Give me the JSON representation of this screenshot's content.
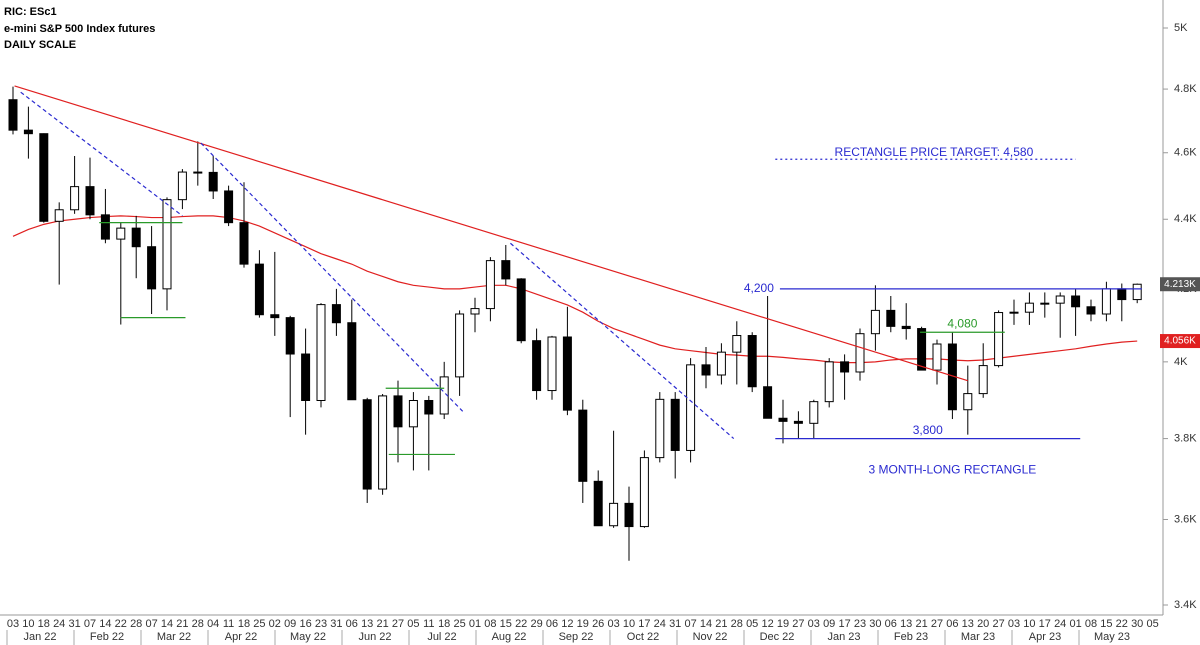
{
  "header": {
    "lines": [
      "RIC: ESc1",
      "e-mini S&P 500 Index futures",
      "DAILY SCALE"
    ]
  },
  "chart_data": {
    "type": "candlestick",
    "log_scale": true,
    "up_color": "#ffffff",
    "down_color": "#000000",
    "categories": [
      "03",
      "10",
      "18",
      "24",
      "31",
      "07",
      "14",
      "22",
      "28",
      "07",
      "14",
      "21",
      "28",
      "04",
      "11",
      "18",
      "25",
      "02",
      "09",
      "16",
      "23",
      "31",
      "06",
      "13",
      "21",
      "27",
      "05",
      "11",
      "18",
      "25",
      "01",
      "08",
      "15",
      "22",
      "29",
      "06",
      "12",
      "19",
      "26",
      "03",
      "10",
      "17",
      "24",
      "31",
      "07",
      "14",
      "21",
      "28",
      "05",
      "12",
      "19",
      "27",
      "03",
      "09",
      "17",
      "23",
      "30",
      "06",
      "13",
      "21",
      "27",
      "06",
      "13",
      "20",
      "27",
      "03",
      "10",
      "17",
      "24",
      "01",
      "08",
      "15",
      "22",
      "30",
      "05"
    ],
    "months": [
      "Jan 22",
      "Feb 22",
      "Mar 22",
      "Apr 22",
      "May 22",
      "Jun 22",
      "Jul 22",
      "Aug 22",
      "Sep 22",
      "Oct 22",
      "Nov 22",
      "Dec 22",
      "Jan 23",
      "Feb 23",
      "Mar 23",
      "Apr 23",
      "May 23"
    ],
    "open": [
      4766,
      4670,
      4659,
      4394,
      4428,
      4497,
      4413,
      4342,
      4374,
      4320,
      4200,
      4458,
      4541,
      4540,
      4484,
      4390,
      4270,
      4128,
      4120,
      4021,
      3898,
      4156,
      4106,
      3900,
      3674,
      3910,
      3830,
      3898,
      3863,
      3960,
      4130,
      4145,
      4280,
      4228,
      4057,
      3924,
      4067,
      3873,
      3693,
      3585,
      3639,
      3583,
      3752,
      3901,
      3770,
      3992,
      3965,
      4026,
      4071,
      3934,
      3852,
      3844,
      3839,
      3895,
      4000,
      3973,
      4076,
      4140,
      4096,
      4090,
      3978,
      4048,
      3874,
      3916,
      3990,
      4134,
      4135,
      4160,
      4160,
      4180,
      4150,
      4130,
      4200,
      4170,
      null
    ],
    "high": [
      4808,
      4744,
      4660,
      4450,
      4590,
      4585,
      4490,
      4390,
      4410,
      4380,
      4465,
      4550,
      4635,
      4590,
      4500,
      4510,
      4310,
      4305,
      4125,
      4090,
      4160,
      4200,
      4170,
      3905,
      3915,
      3950,
      3920,
      3910,
      4000,
      4140,
      4175,
      4290,
      4325,
      4230,
      4090,
      4070,
      4150,
      3900,
      3720,
      3820,
      3680,
      3770,
      3920,
      3920,
      4010,
      4040,
      4050,
      4110,
      4080,
      4180,
      3900,
      3870,
      3900,
      4010,
      4020,
      4090,
      4210,
      4180,
      4160,
      4095,
      4060,
      4080,
      3990,
      4050,
      4140,
      4170,
      4190,
      4190,
      4190,
      4200,
      4170,
      4220,
      4215,
      4215,
      null
    ],
    "low": [
      4657,
      4582,
      4390,
      4212,
      4416,
      4400,
      4330,
      4101,
      4230,
      4130,
      4140,
      4430,
      4500,
      4460,
      4380,
      4260,
      4120,
      4070,
      3855,
      3810,
      3880,
      4070,
      3900,
      3640,
      3660,
      3740,
      3720,
      3720,
      3850,
      3910,
      4080,
      4110,
      4210,
      4050,
      3900,
      3900,
      3860,
      3640,
      3590,
      3580,
      3502,
      3580,
      3740,
      3700,
      3740,
      3930,
      3940,
      3940,
      3920,
      3860,
      3788,
      3800,
      3800,
      3880,
      3900,
      3950,
      4030,
      4080,
      4060,
      3980,
      3940,
      3850,
      3810,
      3905,
      3985,
      4100,
      4100,
      4120,
      4065,
      4070,
      4110,
      4110,
      4110,
      4160,
      null
    ],
    "close": [
      4670,
      4659,
      4394,
      4428,
      4497,
      4413,
      4342,
      4374,
      4320,
      4200,
      4458,
      4541,
      4540,
      4484,
      4390,
      4270,
      4128,
      4120,
      4021,
      3898,
      4156,
      4106,
      3900,
      3674,
      3910,
      3830,
      3898,
      3863,
      3960,
      4130,
      4145,
      4280,
      4228,
      4057,
      3924,
      4067,
      3873,
      3693,
      3585,
      3639,
      3583,
      3752,
      3901,
      3770,
      3992,
      3965,
      4026,
      4071,
      3934,
      3852,
      3844,
      3839,
      3895,
      4000,
      3973,
      4076,
      4140,
      4096,
      4090,
      3978,
      4048,
      3874,
      3916,
      3990,
      4134,
      4135,
      4160,
      4160,
      4180,
      4150,
      4130,
      4200,
      4170,
      4213,
      null
    ],
    "moving_average": {
      "color": "#e02020",
      "values": [
        4350,
        4370,
        4385,
        4395,
        4400,
        4405,
        4408,
        4410,
        4408,
        4405,
        4405,
        4408,
        4410,
        4410,
        4405,
        4395,
        4380,
        4360,
        4340,
        4320,
        4300,
        4285,
        4270,
        4250,
        4235,
        4220,
        4210,
        4205,
        4200,
        4200,
        4205,
        4210,
        4210,
        4200,
        4185,
        4170,
        4155,
        4135,
        4110,
        4090,
        4075,
        4060,
        4045,
        4035,
        4030,
        4025,
        4020,
        4018,
        4015,
        4015,
        4012,
        4008,
        4005,
        4000,
        3998,
        3998,
        4000,
        4005,
        4008,
        4008,
        4008,
        4005,
        4003,
        4005,
        4010,
        4015,
        4020,
        4025,
        4030,
        4035,
        4042,
        4048,
        4053,
        4056,
        null
      ]
    },
    "ylim": [
      3400,
      5000
    ],
    "yticks": [
      {
        "value": 3400,
        "label": "3.4K"
      },
      {
        "value": 3600,
        "label": "3.6K"
      },
      {
        "value": 3800,
        "label": "3.8K"
      },
      {
        "value": 4000,
        "label": "4K"
      },
      {
        "value": 4200,
        "label": "4.2K"
      },
      {
        "value": 4400,
        "label": "4.4K"
      },
      {
        "value": 4600,
        "label": "4.6K"
      },
      {
        "value": 4800,
        "label": "4.8K"
      },
      {
        "value": 5000,
        "label": "5K"
      }
    ],
    "price_tags": [
      {
        "value": 4213,
        "label": "4.213K",
        "color": "#555555"
      },
      {
        "value": 4056,
        "label": "4.056K",
        "color": "#e02020"
      }
    ],
    "trendlines": [
      {
        "color": "#e02020",
        "style": "solid",
        "from": {
          "x": 0.1,
          "y": 4810
        },
        "to": {
          "x": 62,
          "y": 3950
        }
      },
      {
        "color": "#2a2ad0",
        "style": "dashed",
        "from": {
          "x": 0.5,
          "y": 4790
        },
        "to": {
          "x": 11,
          "y": 4410
        }
      },
      {
        "color": "#2a2ad0",
        "style": "dashed",
        "from": {
          "x": 12.2,
          "y": 4630
        },
        "to": {
          "x": 29.2,
          "y": 3870
        }
      },
      {
        "color": "#2a2ad0",
        "style": "dashed",
        "from": {
          "x": 32.3,
          "y": 4330
        },
        "to": {
          "x": 46.8,
          "y": 3800
        }
      }
    ],
    "levels": [
      {
        "value": 4390,
        "color": "#2a9a2a",
        "style": "solid",
        "from": 5.6,
        "to": 11
      },
      {
        "value": 4120,
        "color": "#2a9a2a",
        "style": "solid",
        "from": 7,
        "to": 11.2
      },
      {
        "value": 3930,
        "color": "#2a9a2a",
        "style": "solid",
        "from": 24.2,
        "to": 28
      },
      {
        "value": 3760,
        "color": "#2a9a2a",
        "style": "solid",
        "from": 24.4,
        "to": 28.7
      },
      {
        "value": 4080,
        "label": "4,080",
        "color": "#2a9a2a",
        "style": "solid",
        "from": 58.9,
        "to": 64.4
      },
      {
        "value": 4200,
        "label": "4,200",
        "color": "#2a2ad0",
        "style": "solid",
        "from": 49.8,
        "to": 73.3
      },
      {
        "value": 3800,
        "label": "3,800",
        "color": "#2a2ad0",
        "style": "solid",
        "from": 49.5,
        "to": 69.3
      },
      {
        "value": 4580,
        "color": "#2a2ad0",
        "style": "dotted",
        "from": 49.5,
        "to": 69
      }
    ],
    "annotations": [
      {
        "text": "RECTANGLE PRICE TARGET: 4,580",
        "x": 59.8,
        "y": 4600
      },
      {
        "text": "3 MONTH-LONG RECTANGLE",
        "x": 61,
        "y": 3720
      }
    ]
  }
}
